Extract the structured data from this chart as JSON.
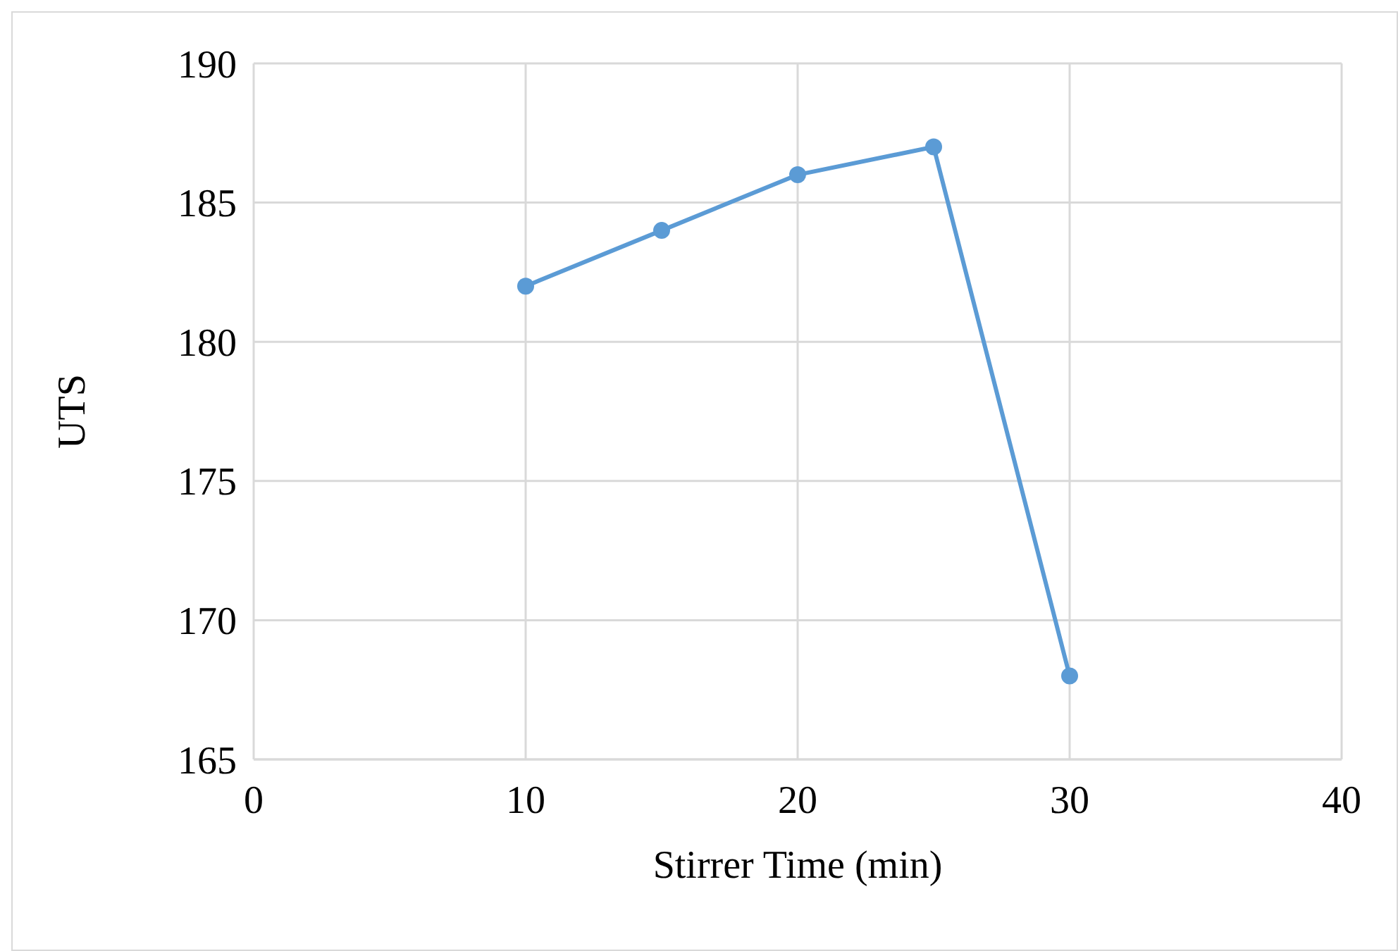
{
  "chart_data": {
    "type": "line",
    "xlabel": "Stirrer Time (min)",
    "ylabel": "UTS",
    "x": [
      10,
      15,
      20,
      25,
      30
    ],
    "series": [
      {
        "color": "#5b9bd5",
        "values": [
          182,
          184,
          186,
          187,
          168
        ]
      }
    ],
    "xlim": [
      0,
      40
    ],
    "xticks": [
      0,
      10,
      20,
      30,
      40
    ],
    "ylim": [
      165,
      190
    ],
    "yticks": [
      165,
      170,
      175,
      180,
      185,
      190
    ],
    "grid": true,
    "marker": "circle",
    "line_style": "solid"
  }
}
